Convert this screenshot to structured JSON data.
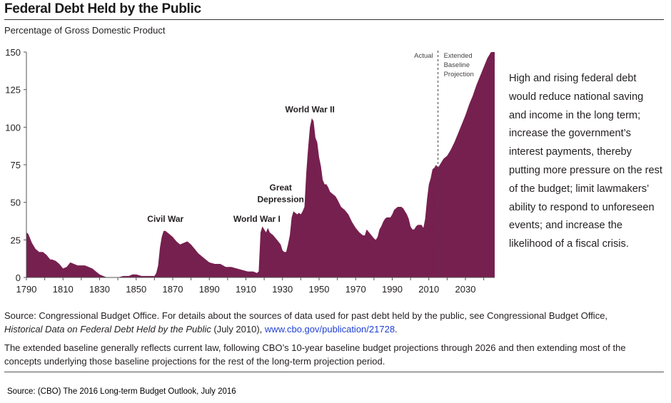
{
  "header": {
    "title": "Federal Debt Held by the Public",
    "subtitle": "Percentage of Gross Domestic Product"
  },
  "note": "High and rising federal debt would reduce national saving and income in the long term; increase the government’s interest payments, thereby putting more pressure on the rest of the budget; limit lawmakers’ ability to respond to unforeseen events; and increase the likelihood of a fiscal crisis.",
  "source": {
    "line1": "Source: Congressional Budget Office. For details about the sources of data used for past debt held by the public, see Congressional Budget Office,",
    "italic": "Historical Data on Federal Debt Held by the Public",
    "after_italic": " (July 2010), ",
    "link": "www.cbo.gov/publication/21728",
    "end": ".",
    "line2": "The extended baseline generally reflects current law, following CBO’s 10-year baseline budget projections through 2026 and then extending most of the concepts underlying those baseline projections for the rest of the long-term projection period."
  },
  "footer": "Source: (CBO) The 2016 Long-term  Budget Outlook, July 2016",
  "chart_data": {
    "type": "area",
    "color": "#76204f",
    "xlim": [
      1790,
      2046
    ],
    "ylim": [
      0,
      150
    ],
    "x_ticks": [
      1790,
      1810,
      1830,
      1850,
      1870,
      1890,
      1910,
      1930,
      1950,
      1970,
      1990,
      2010,
      2030
    ],
    "y_ticks": [
      0,
      25,
      50,
      75,
      100,
      125,
      150
    ],
    "divider_year": 2015,
    "divider_labels": {
      "left": "Actual",
      "right": [
        "Extended",
        "Baseline",
        "Projection"
      ]
    },
    "annotations": [
      {
        "text": "Civil War",
        "x": 1866,
        "y": 37
      },
      {
        "text": "World War I",
        "x": 1916,
        "y": 37
      },
      {
        "text": "Great",
        "x": 1929,
        "y": 58
      },
      {
        "text": "Depression",
        "x": 1929,
        "y": 50
      },
      {
        "text": "World War II",
        "x": 1945,
        "y": 110
      }
    ],
    "x": [
      1790,
      1791,
      1793,
      1795,
      1797,
      1799,
      1801,
      1803,
      1804,
      1806,
      1808,
      1810,
      1812,
      1814,
      1816,
      1818,
      1820,
      1822,
      1824,
      1826,
      1828,
      1830,
      1832,
      1834,
      1836,
      1840,
      1843,
      1846,
      1848,
      1850,
      1853,
      1856,
      1858,
      1860,
      1861,
      1862,
      1863,
      1864,
      1865,
      1866,
      1867,
      1868,
      1870,
      1872,
      1874,
      1876,
      1878,
      1880,
      1882,
      1884,
      1886,
      1888,
      1890,
      1893,
      1896,
      1899,
      1902,
      1905,
      1908,
      1911,
      1914,
      1916,
      1917,
      1918,
      1919,
      1920,
      1921,
      1922,
      1923,
      1925,
      1927,
      1929,
      1930,
      1931,
      1932,
      1933,
      1934,
      1935,
      1936,
      1937,
      1938,
      1939,
      1940,
      1941,
      1942,
      1943,
      1944,
      1945,
      1946,
      1947,
      1948,
      1949,
      1950,
      1951,
      1952,
      1953,
      1954,
      1955,
      1956,
      1957,
      1958,
      1959,
      1960,
      1962,
      1964,
      1966,
      1968,
      1970,
      1972,
      1974,
      1975,
      1976,
      1978,
      1980,
      1981,
      1982,
      1983,
      1984,
      1985,
      1986,
      1987,
      1988,
      1989,
      1990,
      1991,
      1992,
      1993,
      1994,
      1995,
      1996,
      1997,
      1998,
      1999,
      2000,
      2001,
      2002,
      2003,
      2004,
      2005,
      2006,
      2007,
      2008,
      2009,
      2010,
      2011,
      2012,
      2013,
      2014,
      2015,
      2016,
      2018,
      2020,
      2022,
      2024,
      2026,
      2028,
      2030,
      2032,
      2034,
      2036,
      2038,
      2040,
      2042,
      2044,
      2046
    ],
    "y": [
      30,
      29,
      23,
      19,
      17,
      17,
      15,
      12,
      12,
      11,
      9,
      6,
      7,
      10,
      9,
      8,
      8,
      8,
      7,
      6,
      4,
      2,
      1,
      0,
      0,
      0,
      1,
      1,
      2,
      2,
      1,
      1,
      1,
      1,
      3,
      8,
      20,
      27,
      31,
      31,
      30,
      29,
      27,
      24,
      22,
      23,
      24,
      22,
      19,
      16,
      14,
      12,
      10,
      9,
      9,
      7,
      7,
      6,
      5,
      4,
      4,
      3,
      4,
      30,
      34,
      32,
      30,
      33,
      30,
      28,
      25,
      22,
      18,
      17,
      17,
      22,
      28,
      40,
      44,
      43,
      42,
      43,
      42,
      44,
      47,
      70,
      86,
      100,
      106,
      104,
      93,
      90,
      80,
      74,
      65,
      62,
      62,
      60,
      57,
      56,
      55,
      54,
      52,
      47,
      45,
      42,
      37,
      33,
      30,
      28,
      28,
      32,
      29,
      26,
      25,
      27,
      32,
      34,
      37,
      39,
      40,
      40,
      40,
      42,
      45,
      46,
      47,
      47,
      47,
      46,
      44,
      42,
      39,
      34,
      32,
      32,
      34,
      35,
      35,
      35,
      33,
      39,
      52,
      62,
      66,
      72,
      73,
      75,
      73,
      75,
      79,
      81,
      85,
      90,
      96,
      102,
      108,
      115,
      121,
      128,
      134,
      140,
      146,
      152,
      158
    ]
  }
}
